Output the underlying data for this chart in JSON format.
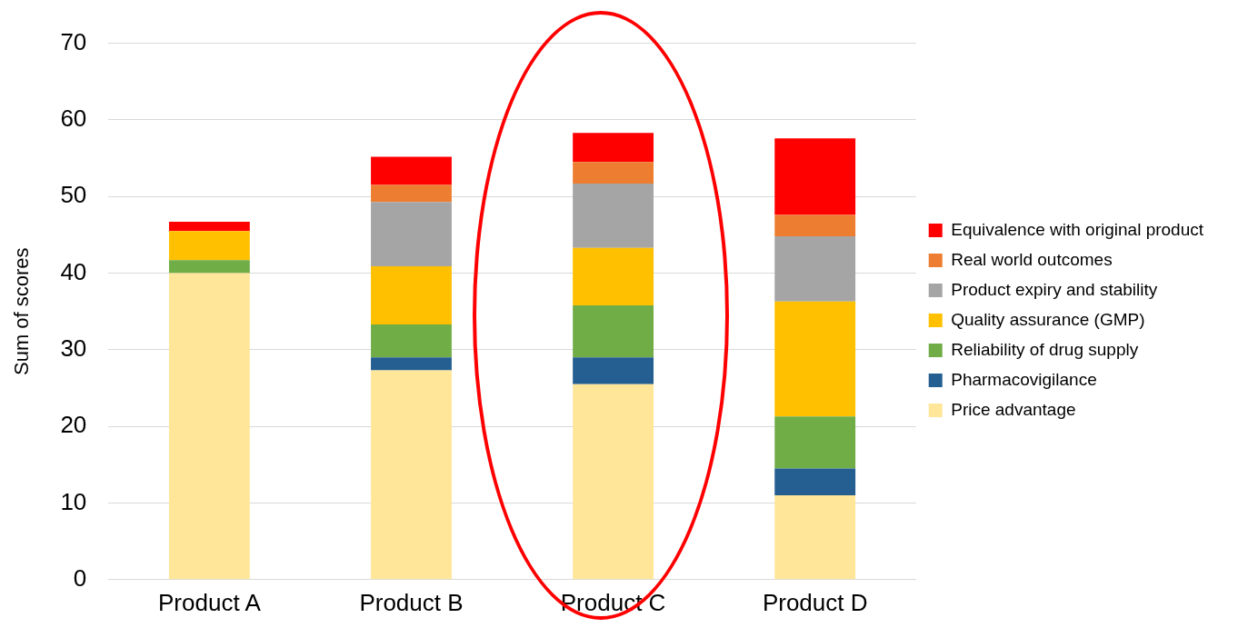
{
  "chart_data": {
    "type": "bar",
    "stacked": true,
    "ylabel": "Sum of scores",
    "categories": [
      "Product A",
      "Product B",
      "Product C",
      "Product D"
    ],
    "series": [
      {
        "name": "Price advantage",
        "color": "#ffe699",
        "values": [
          40.0,
          27.3,
          25.5,
          11.0
        ]
      },
      {
        "name": "Pharmacovigilance",
        "color": "#255e91",
        "values": [
          0,
          1.7,
          3.5,
          3.5
        ]
      },
      {
        "name": "Reliability of drug supply",
        "color": "#70ad47",
        "values": [
          1.7,
          4.3,
          6.8,
          6.8
        ]
      },
      {
        "name": "Quality assurance (GMP)",
        "color": "#ffc000",
        "values": [
          3.8,
          7.6,
          7.5,
          15.0
        ]
      },
      {
        "name": "Product expiry and stability",
        "color": "#a5a5a5",
        "values": [
          0,
          8.4,
          8.4,
          8.5
        ]
      },
      {
        "name": "Real world outcomes",
        "color": "#ed7d31",
        "values": [
          0,
          2.2,
          2.8,
          2.8
        ]
      },
      {
        "name": "Equivalence with original product",
        "color": "#ff0000",
        "values": [
          1.2,
          3.7,
          3.8,
          10.0
        ]
      }
    ],
    "ylim": [
      0,
      70
    ],
    "yticks": [
      0,
      10,
      20,
      30,
      40,
      50,
      60,
      70
    ],
    "grid": "y",
    "legend": "right"
  }
}
